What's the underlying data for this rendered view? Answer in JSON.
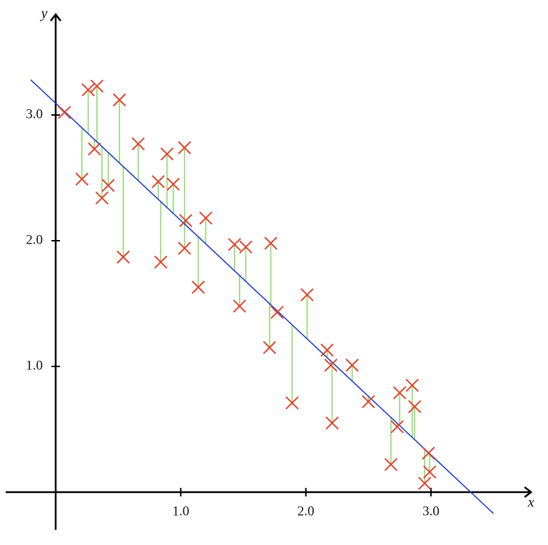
{
  "chart_data": {
    "type": "scatter",
    "x_label": "x",
    "y_label": "y",
    "x": [
      0.07,
      0.21,
      0.26,
      0.31,
      0.33,
      0.37,
      0.42,
      0.51,
      0.54,
      0.66,
      0.82,
      0.84,
      0.89,
      0.94,
      1.03,
      1.04,
      1.03,
      1.14,
      1.2,
      1.43,
      1.47,
      1.52,
      1.71,
      1.72,
      1.77,
      1.89,
      2.01,
      2.17,
      2.2,
      2.21,
      2.37,
      2.5,
      2.68,
      2.73,
      2.75,
      2.85,
      2.87,
      2.95,
      2.98,
      2.99
    ],
    "y": [
      3.02,
      2.49,
      3.2,
      2.73,
      3.23,
      2.34,
      2.44,
      3.12,
      1.87,
      2.77,
      2.47,
      1.83,
      2.69,
      2.45,
      2.74,
      2.16,
      1.94,
      1.63,
      2.18,
      1.97,
      1.48,
      1.95,
      1.15,
      1.98,
      1.43,
      0.71,
      1.57,
      1.13,
      1.01,
      0.55,
      1.01,
      0.72,
      0.22,
      0.52,
      0.79,
      0.85,
      0.68,
      0.07,
      0.31,
      0.16
    ],
    "color": "#e0442e",
    "fit": {
      "x": [
        -0.2,
        3.5
      ],
      "y": [
        3.28,
        -0.17
      ],
      "color": "#1f3ccc"
    },
    "residual_color": "#86d860",
    "xlim": [
      -0.4,
      3.8
    ],
    "ylim": [
      -0.3,
      3.8
    ],
    "xticks": [
      {
        "value": 1,
        "label": "1.0"
      },
      {
        "value": 2,
        "label": "2.0"
      },
      {
        "value": 3,
        "label": "3.0"
      }
    ],
    "yticks": [
      {
        "value": 1,
        "label": "1.0"
      },
      {
        "value": 2,
        "label": "2.0"
      },
      {
        "value": 3,
        "label": "3.0"
      }
    ]
  }
}
